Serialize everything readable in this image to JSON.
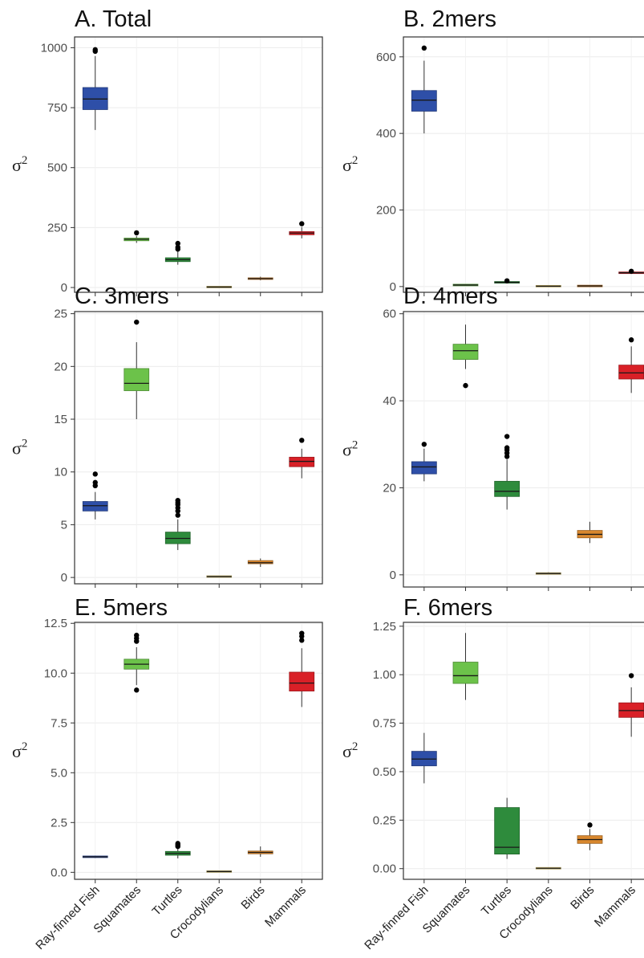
{
  "colors": {
    "Ray-finned Fish": "#2e4fa8",
    "Squamates": "#6cc24a",
    "Turtles": "#2e8b3c",
    "Crocodylians": "#f3dd86",
    "Birds": "#d8872e",
    "Mammals": "#d92027"
  },
  "categories": [
    "Ray-finned Fish",
    "Squamates",
    "Turtles",
    "Crocodylians",
    "Birds",
    "Mammals"
  ],
  "chart_data": [
    {
      "type": "box",
      "title": "A. Total",
      "ylabel": "σ2",
      "ylim": [
        -20,
        1045
      ],
      "yticks": [
        "0",
        "250",
        "500",
        "750",
        "1000"
      ],
      "boxes": [
        {
          "category": "Ray-finned Fish",
          "min": 657,
          "q1": 742,
          "median": 786,
          "q3": 834,
          "max": 965,
          "outliers": [
            985,
            992
          ]
        },
        {
          "category": "Squamates",
          "min": 186,
          "q1": 195,
          "median": 201,
          "q3": 206,
          "max": 215,
          "outliers": [
            228
          ]
        },
        {
          "category": "Turtles",
          "min": 95,
          "q1": 108,
          "median": 116,
          "q3": 124,
          "max": 150,
          "outliers": [
            160,
            168,
            184
          ]
        },
        {
          "category": "Crocodylians",
          "min": 0,
          "q1": 1,
          "median": 2,
          "q3": 3,
          "max": 4,
          "outliers": []
        },
        {
          "category": "Birds",
          "min": 30,
          "q1": 34,
          "median": 37,
          "q3": 40,
          "max": 45,
          "outliers": []
        },
        {
          "category": "Mammals",
          "min": 205,
          "q1": 220,
          "median": 227,
          "q3": 233,
          "max": 252,
          "outliers": [
            266
          ]
        }
      ]
    },
    {
      "type": "box",
      "title": "B. 2mers",
      "ylabel": "σ2",
      "ylim": [
        -15,
        652
      ],
      "yticks": [
        "0",
        "200",
        "400",
        "600"
      ],
      "boxes": [
        {
          "category": "Ray-finned Fish",
          "min": 400,
          "q1": 458,
          "median": 487,
          "q3": 512,
          "max": 590,
          "outliers": [
            623
          ]
        },
        {
          "category": "Squamates",
          "min": 2,
          "q1": 3,
          "median": 4,
          "q3": 5,
          "max": 6,
          "outliers": []
        },
        {
          "category": "Turtles",
          "min": 8,
          "q1": 10,
          "median": 11,
          "q3": 12,
          "max": 14,
          "outliers": [
            15
          ]
        },
        {
          "category": "Crocodylians",
          "min": 0,
          "q1": 0.5,
          "median": 1,
          "q3": 1.5,
          "max": 2,
          "outliers": []
        },
        {
          "category": "Birds",
          "min": 0.5,
          "q1": 1,
          "median": 1.5,
          "q3": 2,
          "max": 2.5,
          "outliers": []
        },
        {
          "category": "Mammals",
          "min": 33,
          "q1": 35,
          "median": 36,
          "q3": 37,
          "max": 39,
          "outliers": [
            40
          ]
        }
      ]
    },
    {
      "type": "box",
      "title": "C. 3mers",
      "ylabel": "σ2",
      "ylim": [
        -0.6,
        25.2
      ],
      "yticks": [
        "0",
        "5",
        "10",
        "15",
        "20",
        "25"
      ],
      "boxes": [
        {
          "category": "Ray-finned Fish",
          "min": 5.5,
          "q1": 6.3,
          "median": 6.8,
          "q3": 7.2,
          "max": 8.1,
          "outliers": [
            8.7,
            9.0,
            9.8
          ]
        },
        {
          "category": "Squamates",
          "min": 15.0,
          "q1": 17.7,
          "median": 18.4,
          "q3": 19.8,
          "max": 22.3,
          "outliers": [
            24.2
          ]
        },
        {
          "category": "Turtles",
          "min": 2.6,
          "q1": 3.2,
          "median": 3.7,
          "q3": 4.3,
          "max": 5.5,
          "outliers": [
            5.9,
            6.3,
            6.6,
            6.9,
            7.1,
            7.3
          ]
        },
        {
          "category": "Crocodylians",
          "min": 0.02,
          "q1": 0.05,
          "median": 0.08,
          "q3": 0.12,
          "max": 0.16,
          "outliers": []
        },
        {
          "category": "Birds",
          "min": 1.0,
          "q1": 1.3,
          "median": 1.4,
          "q3": 1.6,
          "max": 1.8,
          "outliers": []
        },
        {
          "category": "Mammals",
          "min": 9.4,
          "q1": 10.5,
          "median": 11.0,
          "q3": 11.4,
          "max": 12.2,
          "outliers": [
            13.0
          ]
        }
      ]
    },
    {
      "type": "box",
      "title": "D. 4mers",
      "ylabel": "σ2",
      "ylim": [
        -2.8,
        60.5
      ],
      "yticks": [
        "0",
        "20",
        "40",
        "60"
      ],
      "boxes": [
        {
          "category": "Ray-finned Fish",
          "min": 21.5,
          "q1": 23.2,
          "median": 24.8,
          "q3": 26.0,
          "max": 29.0,
          "outliers": [
            30.0
          ]
        },
        {
          "category": "Squamates",
          "min": 47.3,
          "q1": 49.5,
          "median": 51.5,
          "q3": 53.0,
          "max": 57.5,
          "outliers": [
            43.5
          ]
        },
        {
          "category": "Turtles",
          "min": 15.0,
          "q1": 18.0,
          "median": 19.2,
          "q3": 21.5,
          "max": 26.5,
          "outliers": [
            27.2,
            28.0,
            28.7,
            29.2,
            31.8
          ]
        },
        {
          "category": "Crocodylians",
          "min": 0.05,
          "q1": 0.15,
          "median": 0.3,
          "q3": 0.45,
          "max": 0.6,
          "outliers": []
        },
        {
          "category": "Birds",
          "min": 7.3,
          "q1": 8.5,
          "median": 9.3,
          "q3": 10.2,
          "max": 12.2,
          "outliers": []
        },
        {
          "category": "Mammals",
          "min": 41.8,
          "q1": 45.0,
          "median": 46.4,
          "q3": 48.2,
          "max": 52.5,
          "outliers": [
            54.0
          ]
        }
      ]
    },
    {
      "type": "box",
      "title": "E. 5mers",
      "ylabel": "σ2",
      "ylim": [
        -0.35,
        12.55
      ],
      "yticks": [
        "0.0",
        "2.5",
        "5.0",
        "7.5",
        "10.0",
        "12.5"
      ],
      "boxes": [
        {
          "category": "Ray-finned Fish",
          "min": 0.72,
          "q1": 0.76,
          "median": 0.78,
          "q3": 0.8,
          "max": 0.84,
          "outliers": []
        },
        {
          "category": "Squamates",
          "min": 9.4,
          "q1": 10.2,
          "median": 10.45,
          "q3": 10.7,
          "max": 11.3,
          "outliers": [
            9.15,
            11.6,
            11.75,
            11.9
          ]
        },
        {
          "category": "Turtles",
          "min": 0.7,
          "q1": 0.86,
          "median": 0.95,
          "q3": 1.05,
          "max": 1.22,
          "outliers": [
            1.3,
            1.38,
            1.45
          ]
        },
        {
          "category": "Crocodylians",
          "min": 0.0,
          "q1": 0.02,
          "median": 0.04,
          "q3": 0.06,
          "max": 0.08,
          "outliers": []
        },
        {
          "category": "Birds",
          "min": 0.78,
          "q1": 0.93,
          "median": 1.0,
          "q3": 1.07,
          "max": 1.3,
          "outliers": []
        },
        {
          "category": "Mammals",
          "min": 8.3,
          "q1": 9.1,
          "median": 9.5,
          "q3": 10.05,
          "max": 11.25,
          "outliers": [
            11.65,
            11.85,
            12.0
          ]
        }
      ]
    },
    {
      "type": "box",
      "title": "F. 6mers",
      "ylabel": "σ2",
      "ylim": [
        -0.055,
        1.27
      ],
      "yticks": [
        "0.00",
        "0.25",
        "0.50",
        "0.75",
        "1.00",
        "1.25"
      ],
      "boxes": [
        {
          "category": "Ray-finned Fish",
          "min": 0.44,
          "q1": 0.53,
          "median": 0.565,
          "q3": 0.605,
          "max": 0.7,
          "outliers": []
        },
        {
          "category": "Squamates",
          "min": 0.87,
          "q1": 0.955,
          "median": 0.995,
          "q3": 1.065,
          "max": 1.215,
          "outliers": []
        },
        {
          "category": "Turtles",
          "min": 0.05,
          "q1": 0.075,
          "median": 0.11,
          "q3": 0.315,
          "max": 0.365,
          "outliers": []
        },
        {
          "category": "Crocodylians",
          "min": 0.0,
          "q1": 0.001,
          "median": 0.002,
          "q3": 0.003,
          "max": 0.005,
          "outliers": []
        },
        {
          "category": "Birds",
          "min": 0.095,
          "q1": 0.13,
          "median": 0.15,
          "q3": 0.17,
          "max": 0.205,
          "outliers": [
            0.225
          ]
        },
        {
          "category": "Mammals",
          "min": 0.68,
          "q1": 0.78,
          "median": 0.815,
          "q3": 0.855,
          "max": 0.935,
          "outliers": [
            0.995
          ]
        }
      ]
    }
  ]
}
